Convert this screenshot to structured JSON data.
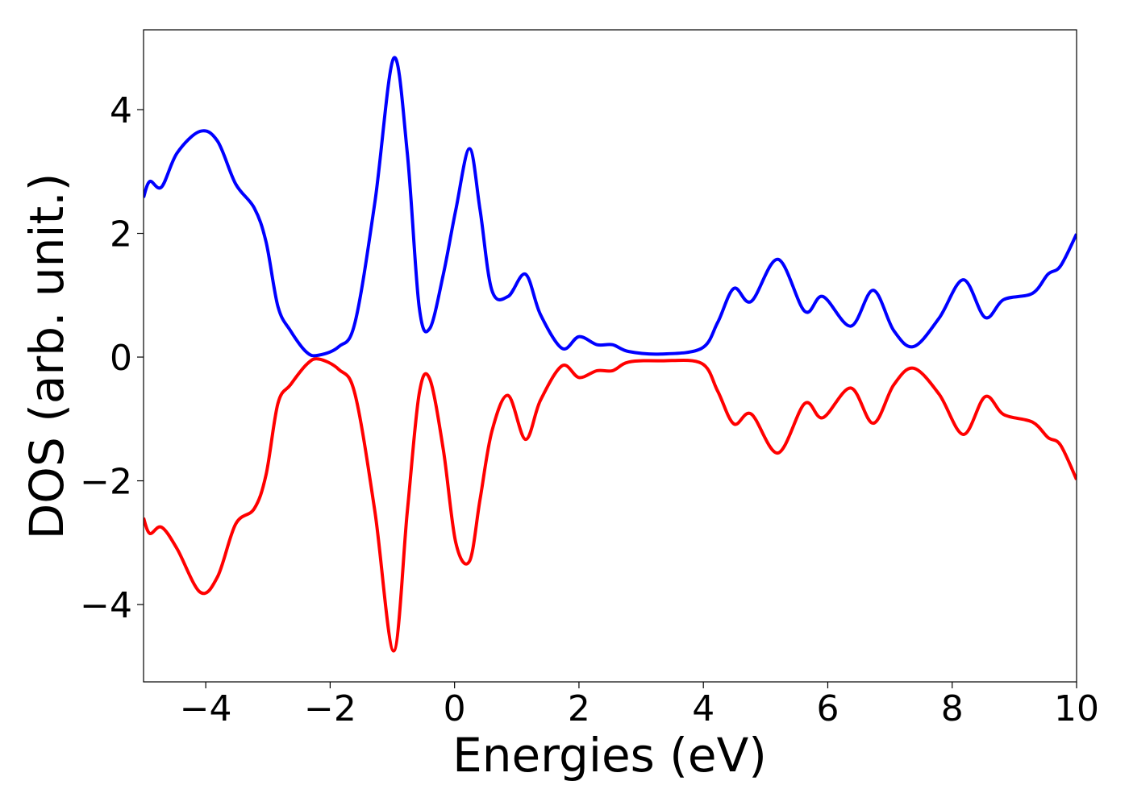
{
  "chart_data": {
    "type": "line",
    "xlabel": "Energies (eV)",
    "ylabel": "DOS (arb. unit.)",
    "x": [
      -5,
      -4.9,
      -4.71,
      -4.46,
      -4.09,
      -3.81,
      -3.52,
      -3.22,
      -3.03,
      -2.84,
      -2.64,
      -2.38,
      -2.19,
      -1.86,
      -1.6,
      -1.28,
      -0.98,
      -0.76,
      -0.57,
      -0.4,
      -0.18,
      0.02,
      0.24,
      0.41,
      0.6,
      0.86,
      1.14,
      1.38,
      1.73,
      2.0,
      2.29,
      2.54,
      2.8,
      3.32,
      3.97,
      4.23,
      4.49,
      4.77,
      5.2,
      5.63,
      5.92,
      6.37,
      6.73,
      7.06,
      7.38,
      7.79,
      8.18,
      8.53,
      8.83,
      9.29,
      9.54,
      9.74,
      10.0
    ],
    "series": [
      {
        "color": "#0000ff",
        "values": [
          2.58,
          2.84,
          2.75,
          3.3,
          3.65,
          3.49,
          2.8,
          2.41,
          1.86,
          0.82,
          0.43,
          0.08,
          0.03,
          0.17,
          0.56,
          2.51,
          4.83,
          3.3,
          0.82,
          0.46,
          1.34,
          2.38,
          3.37,
          2.38,
          1.08,
          0.98,
          1.34,
          0.69,
          0.14,
          0.33,
          0.2,
          0.2,
          0.09,
          0.05,
          0.14,
          0.56,
          1.11,
          0.9,
          1.58,
          0.74,
          0.98,
          0.5,
          1.08,
          0.43,
          0.17,
          0.63,
          1.25,
          0.64,
          0.93,
          1.03,
          1.34,
          1.47,
          1.99
        ]
      },
      {
        "color": "#ff0000",
        "values": [
          -2.6,
          -2.85,
          -2.75,
          -3.1,
          -3.8,
          -3.55,
          -2.7,
          -2.45,
          -1.9,
          -0.75,
          -0.45,
          -0.12,
          -0.03,
          -0.2,
          -0.6,
          -2.5,
          -4.75,
          -2.5,
          -0.6,
          -0.35,
          -1.5,
          -3.0,
          -3.3,
          -2.3,
          -1.2,
          -0.62,
          -1.33,
          -0.7,
          -0.14,
          -0.33,
          -0.22,
          -0.22,
          -0.08,
          -0.06,
          -0.1,
          -0.55,
          -1.08,
          -0.92,
          -1.55,
          -0.75,
          -0.98,
          -0.5,
          -1.07,
          -0.45,
          -0.18,
          -0.6,
          -1.25,
          -0.64,
          -0.93,
          -1.05,
          -1.3,
          -1.42,
          -1.98
        ]
      }
    ],
    "xlim": [
      -5,
      10
    ],
    "ylim": [
      -5.25,
      5.29
    ],
    "xticks": [
      {
        "value": -4,
        "label": "−4"
      },
      {
        "value": -2,
        "label": "−2"
      },
      0,
      2,
      4,
      6,
      8,
      10
    ],
    "yticks": [
      {
        "value": -4,
        "label": "−4"
      },
      {
        "value": -2,
        "label": "−2"
      },
      0,
      2,
      4
    ],
    "grid": false
  }
}
